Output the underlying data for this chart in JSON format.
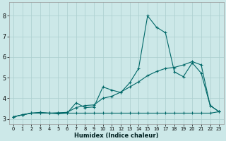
{
  "xlabel": "Humidex (Indice chaleur)",
  "bg_color": "#cce8e8",
  "grid_color": "#aacece",
  "line_color": "#006868",
  "xlim": [
    -0.5,
    23.5
  ],
  "ylim": [
    2.75,
    8.65
  ],
  "xticks": [
    0,
    1,
    2,
    3,
    4,
    5,
    6,
    7,
    8,
    9,
    10,
    11,
    12,
    13,
    14,
    15,
    16,
    17,
    18,
    19,
    20,
    21,
    22,
    23
  ],
  "yticks": [
    3,
    4,
    5,
    6,
    7,
    8
  ],
  "line_flat_x": [
    0,
    1,
    2,
    3,
    4,
    5,
    6,
    7,
    8,
    9,
    10,
    11,
    12,
    13,
    14,
    15,
    16,
    17,
    18,
    19,
    20,
    21,
    22,
    23
  ],
  "line_flat_y": [
    3.1,
    3.2,
    3.28,
    3.28,
    3.28,
    3.25,
    3.28,
    3.28,
    3.28,
    3.28,
    3.28,
    3.28,
    3.28,
    3.28,
    3.28,
    3.28,
    3.28,
    3.28,
    3.28,
    3.28,
    3.28,
    3.28,
    3.28,
    3.35
  ],
  "line_diag_x": [
    0,
    1,
    2,
    3,
    4,
    5,
    6,
    7,
    8,
    9,
    10,
    11,
    12,
    13,
    14,
    15,
    16,
    17,
    18,
    19,
    20,
    21,
    22,
    23
  ],
  "line_diag_y": [
    3.1,
    3.2,
    3.28,
    3.3,
    3.28,
    3.3,
    3.32,
    3.55,
    3.65,
    3.68,
    4.0,
    4.1,
    4.3,
    4.55,
    4.8,
    5.1,
    5.3,
    5.45,
    5.5,
    5.62,
    5.78,
    5.62,
    3.65,
    3.35
  ],
  "line_peak_x": [
    0,
    1,
    2,
    3,
    4,
    5,
    6,
    7,
    8,
    9,
    10,
    11,
    12,
    13,
    14,
    15,
    16,
    17,
    18,
    19,
    20,
    21,
    22,
    23
  ],
  "line_peak_y": [
    3.1,
    3.2,
    3.28,
    3.32,
    3.28,
    3.28,
    3.28,
    3.78,
    3.55,
    3.58,
    4.55,
    4.4,
    4.28,
    4.75,
    5.45,
    8.0,
    7.45,
    7.18,
    5.28,
    5.05,
    5.72,
    5.22,
    3.65,
    3.35
  ]
}
